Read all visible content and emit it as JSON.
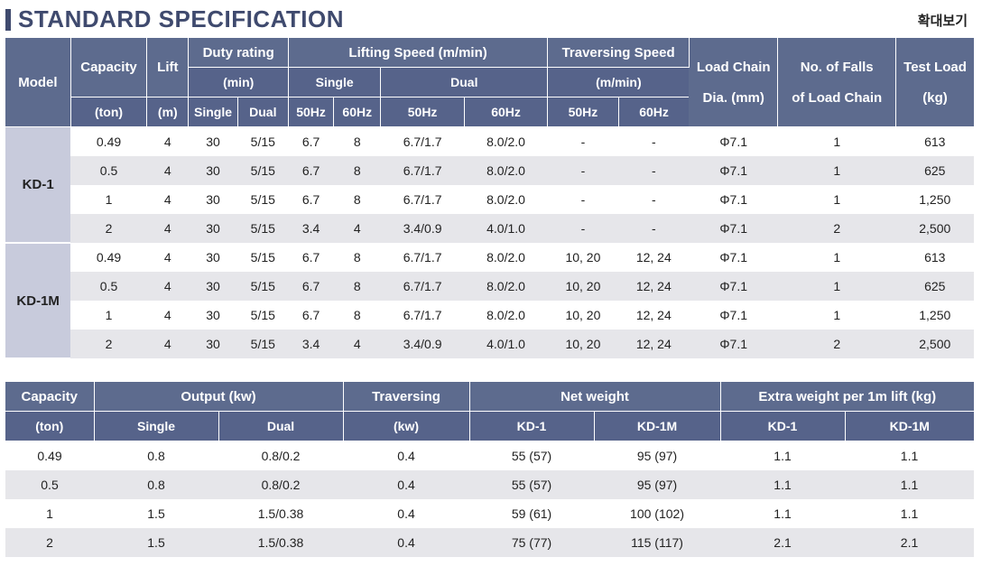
{
  "header": {
    "title": "STANDARD SPECIFICATION",
    "zoom_label": "확대보기"
  },
  "spec_table": {
    "headers": {
      "model": "Model",
      "capacity": "Capacity",
      "capacity_unit": "(ton)",
      "lift": "Lift",
      "lift_unit": "(m)",
      "duty": "Duty rating",
      "duty_unit": "(min)",
      "duty_single": "Single",
      "duty_dual": "Dual",
      "lifting": "Lifting Speed (m/min)",
      "lifting_single": "Single",
      "lifting_dual": "Dual",
      "hz50": "50Hz",
      "hz60": "60Hz",
      "traversing": "Traversing Speed",
      "traversing_unit": "(m/min)",
      "chain_dia": "Load Chain",
      "chain_dia_unit": "Dia. (mm)",
      "falls": "No. of Falls",
      "falls_unit": "of Load Chain",
      "test_load": "Test Load",
      "test_load_unit": "(kg)"
    },
    "groups": [
      {
        "model": "KD-1",
        "rows": [
          [
            "0.49",
            "4",
            "30",
            "5/15",
            "6.7",
            "8",
            "6.7/1.7",
            "8.0/2.0",
            "-",
            "-",
            "Φ7.1",
            "1",
            "613"
          ],
          [
            "0.5",
            "4",
            "30",
            "5/15",
            "6.7",
            "8",
            "6.7/1.7",
            "8.0/2.0",
            "-",
            "-",
            "Φ7.1",
            "1",
            "625"
          ],
          [
            "1",
            "4",
            "30",
            "5/15",
            "6.7",
            "8",
            "6.7/1.7",
            "8.0/2.0",
            "-",
            "-",
            "Φ7.1",
            "1",
            "1,250"
          ],
          [
            "2",
            "4",
            "30",
            "5/15",
            "3.4",
            "4",
            "3.4/0.9",
            "4.0/1.0",
            "-",
            "-",
            "Φ7.1",
            "2",
            "2,500"
          ]
        ]
      },
      {
        "model": "KD-1M",
        "rows": [
          [
            "0.49",
            "4",
            "30",
            "5/15",
            "6.7",
            "8",
            "6.7/1.7",
            "8.0/2.0",
            "10, 20",
            "12, 24",
            "Φ7.1",
            "1",
            "613"
          ],
          [
            "0.5",
            "4",
            "30",
            "5/15",
            "6.7",
            "8",
            "6.7/1.7",
            "8.0/2.0",
            "10, 20",
            "12, 24",
            "Φ7.1",
            "1",
            "625"
          ],
          [
            "1",
            "4",
            "30",
            "5/15",
            "6.7",
            "8",
            "6.7/1.7",
            "8.0/2.0",
            "10, 20",
            "12, 24",
            "Φ7.1",
            "1",
            "1,250"
          ],
          [
            "2",
            "4",
            "30",
            "5/15",
            "3.4",
            "4",
            "3.4/0.9",
            "4.0/1.0",
            "10, 20",
            "12, 24",
            "Φ7.1",
            "2",
            "2,500"
          ]
        ]
      }
    ]
  },
  "output_table": {
    "headers": {
      "capacity": "Capacity",
      "capacity_unit": "(ton)",
      "output": "Output (kw)",
      "single": "Single",
      "dual": "Dual",
      "traversing": "Traversing",
      "traversing_unit": "(kw)",
      "net_weight": "Net weight",
      "extra_weight": "Extra weight per 1m lift (kg)",
      "kd1": "KD-1",
      "kd1m": "KD-1M"
    },
    "rows": [
      [
        "0.49",
        "0.8",
        "0.8/0.2",
        "0.4",
        "55 (57)",
        "95 (97)",
        "1.1",
        "1.1"
      ],
      [
        "0.5",
        "0.8",
        "0.8/0.2",
        "0.4",
        "55 (57)",
        "95 (97)",
        "1.1",
        "1.1"
      ],
      [
        "1",
        "1.5",
        "1.5/0.38",
        "0.4",
        "59 (61)",
        "100 (102)",
        "1.1",
        "1.1"
      ],
      [
        "2",
        "1.5",
        "1.5/0.38",
        "0.4",
        "75 (77)",
        "115 (117)",
        "2.1",
        "2.1"
      ]
    ]
  }
}
